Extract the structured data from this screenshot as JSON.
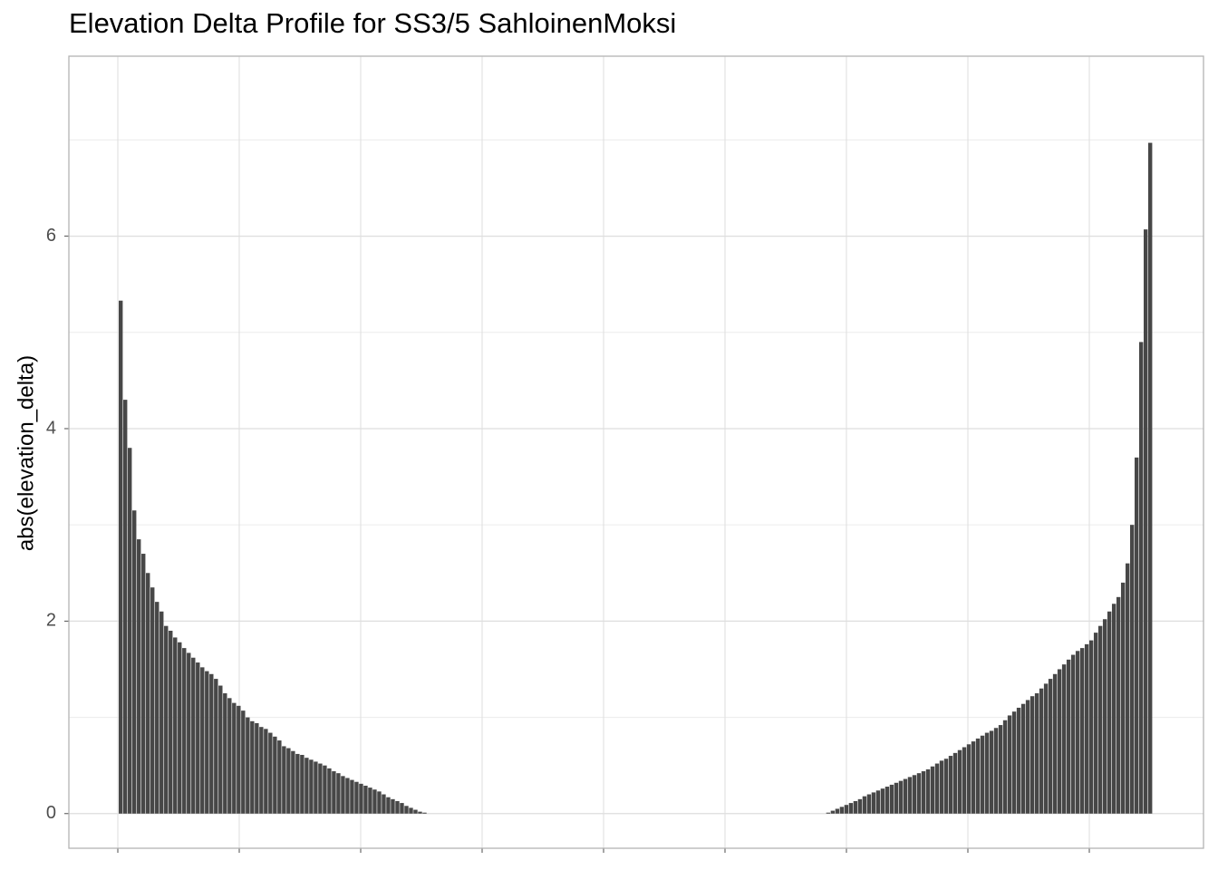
{
  "chart_data": {
    "type": "bar",
    "title": "Elevation Delta Profile for SS3/5 SahloinenMoksi",
    "y_label": "abs(elevation_delta)",
    "color": "#474747",
    "ylim": [
      -0.36,
      7.87
    ],
    "yticks": [
      0,
      2,
      4,
      6
    ],
    "grid": true,
    "values": [
      5.33,
      4.3,
      3.8,
      3.15,
      2.85,
      2.7,
      2.5,
      2.35,
      2.2,
      2.1,
      1.95,
      1.9,
      1.83,
      1.78,
      1.72,
      1.67,
      1.62,
      1.57,
      1.52,
      1.48,
      1.45,
      1.4,
      1.33,
      1.25,
      1.2,
      1.15,
      1.12,
      1.07,
      1.0,
      0.96,
      0.94,
      0.9,
      0.88,
      0.84,
      0.8,
      0.76,
      0.7,
      0.68,
      0.65,
      0.62,
      0.61,
      0.58,
      0.56,
      0.54,
      0.52,
      0.5,
      0.47,
      0.44,
      0.42,
      0.39,
      0.37,
      0.35,
      0.33,
      0.31,
      0.29,
      0.27,
      0.25,
      0.23,
      0.2,
      0.17,
      0.15,
      0.13,
      0.11,
      0.08,
      0.06,
      0.04,
      0.02,
      0.01,
      0,
      0,
      0,
      0,
      0,
      0,
      0,
      0,
      0,
      0,
      0,
      0,
      0,
      0,
      0,
      0,
      0,
      0,
      0,
      0,
      0,
      0,
      0,
      0,
      0,
      0,
      0,
      0,
      0,
      0,
      0,
      0,
      0,
      0,
      0,
      0,
      0,
      0,
      0,
      0,
      0,
      0,
      0,
      0,
      0,
      0,
      0,
      0,
      0,
      0,
      0,
      0,
      0,
      0,
      0,
      0,
      0,
      0,
      0,
      0,
      0,
      0,
      0,
      0,
      0,
      0,
      0,
      0,
      0,
      0,
      0,
      0,
      0,
      0,
      0,
      0,
      0,
      0,
      0,
      0,
      0,
      0,
      0,
      0,
      0,
      0,
      0,
      0,
      0.01,
      0.03,
      0.05,
      0.07,
      0.09,
      0.11,
      0.13,
      0.15,
      0.18,
      0.2,
      0.22,
      0.24,
      0.26,
      0.28,
      0.3,
      0.32,
      0.34,
      0.36,
      0.38,
      0.4,
      0.42,
      0.44,
      0.46,
      0.49,
      0.52,
      0.55,
      0.57,
      0.6,
      0.63,
      0.66,
      0.69,
      0.72,
      0.75,
      0.78,
      0.81,
      0.84,
      0.86,
      0.89,
      0.92,
      0.97,
      1.02,
      1.06,
      1.1,
      1.14,
      1.18,
      1.22,
      1.25,
      1.3,
      1.35,
      1.4,
      1.45,
      1.5,
      1.55,
      1.6,
      1.65,
      1.69,
      1.72,
      1.76,
      1.8,
      1.88,
      1.95,
      2.02,
      2.1,
      2.18,
      2.25,
      2.4,
      2.6,
      3.0,
      3.7,
      4.9,
      6.07,
      6.97
    ]
  }
}
